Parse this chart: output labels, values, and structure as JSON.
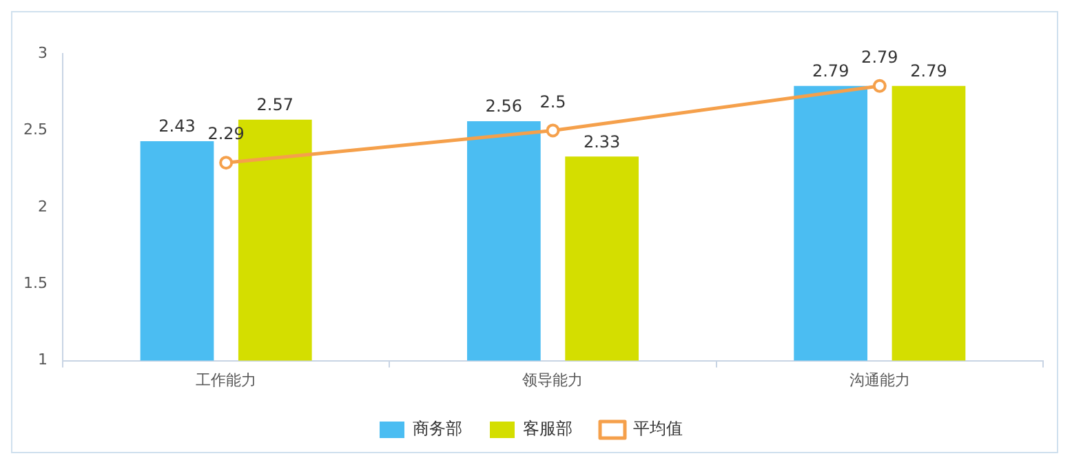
{
  "chart_data": {
    "type": "bar",
    "categories": [
      "工作能力",
      "领导能力",
      "沟通能力"
    ],
    "series": [
      {
        "name": "商务部",
        "color": "#4bbdf2",
        "values": [
          2.43,
          2.56,
          2.79
        ]
      },
      {
        "name": "客服部",
        "color": "#d4de00",
        "values": [
          2.57,
          2.33,
          2.79
        ]
      },
      {
        "name": "平均值",
        "type": "line",
        "color": "#f5a04b",
        "values": [
          2.29,
          2.5,
          2.79
        ],
        "marker": "circle"
      }
    ],
    "ylim": [
      1,
      3
    ],
    "yticks": [
      1,
      1.5,
      2,
      2.5,
      3
    ],
    "grid": false,
    "legend": "bottom",
    "data_labels": true
  }
}
